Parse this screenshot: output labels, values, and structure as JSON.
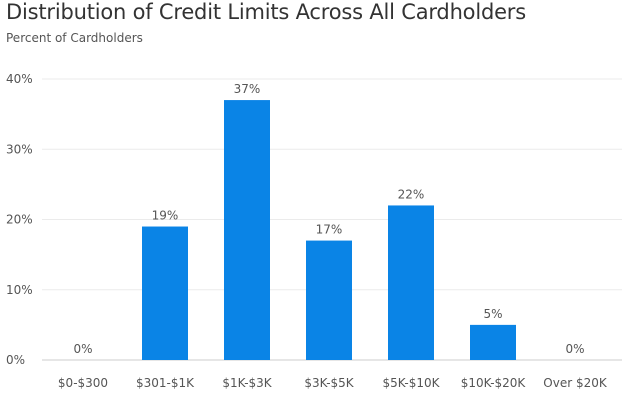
{
  "chart_data": {
    "type": "bar",
    "title": "Distribution of Credit Limits Across All Cardholders",
    "subtitle": "Percent of Cardholders",
    "xlabel": "",
    "ylabel": "",
    "categories": [
      "$0-$300",
      "$301-$1K",
      "$1K-$3K",
      "$3K-$5K",
      "$5K-$10K",
      "$10K-$20K",
      "Over $20K"
    ],
    "values": [
      0,
      19,
      37,
      17,
      22,
      5,
      0
    ],
    "data_labels": [
      "0%",
      "19%",
      "37%",
      "17%",
      "22%",
      "5%",
      "0%"
    ],
    "ylim": [
      0,
      40
    ],
    "yticks": [
      0,
      10,
      20,
      30,
      40
    ],
    "ytick_labels": [
      "0%",
      "10%",
      "20%",
      "30%",
      "40%"
    ],
    "grid": true,
    "colors": {
      "bar": "#0a84e6",
      "grid": "#ebebeb",
      "axis": "#cccccc"
    }
  }
}
